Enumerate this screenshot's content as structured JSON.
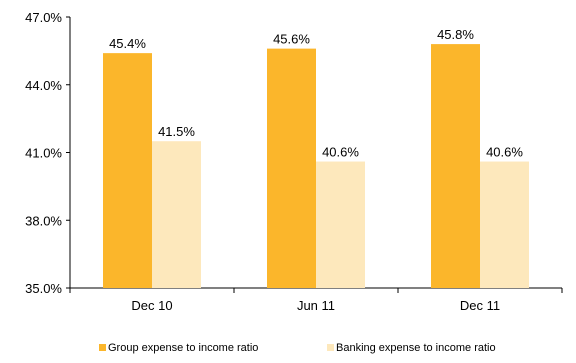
{
  "chart_data": {
    "type": "bar",
    "title": "",
    "xlabel": "",
    "ylabel": "",
    "categories": [
      "Dec 10",
      "Jun 11",
      "Dec 11"
    ],
    "ylim": [
      35.0,
      47.0
    ],
    "yticks": [
      35.0,
      38.0,
      41.0,
      44.0,
      47.0
    ],
    "ytick_labels": [
      "35.0%",
      "38.0%",
      "41.0%",
      "44.0%",
      "47.0%"
    ],
    "grid": false,
    "legend_position": "bottom",
    "series": [
      {
        "name": "Group expense to income ratio",
        "values": [
          45.4,
          45.6,
          45.8
        ],
        "labels": [
          "45.4%",
          "45.6%",
          "45.8%"
        ],
        "color": "#FBB62B"
      },
      {
        "name": "Banking expense to income ratio",
        "values": [
          41.5,
          40.6,
          40.6
        ],
        "labels": [
          "41.5%",
          "40.6%",
          "40.6%"
        ],
        "color": "#FDE8BC"
      }
    ]
  }
}
